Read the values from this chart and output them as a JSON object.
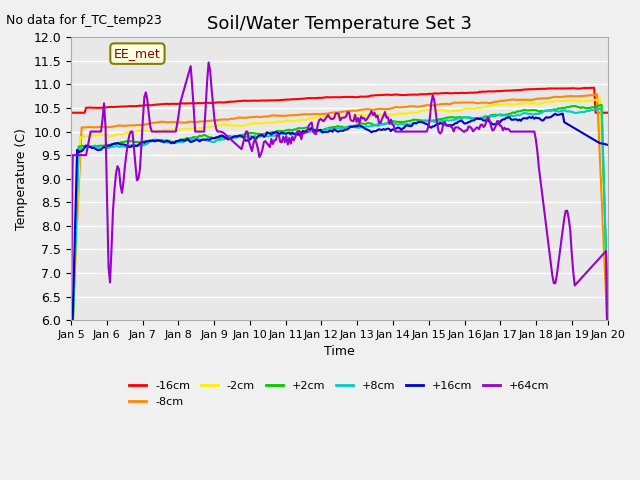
{
  "title": "Soil/Water Temperature Set 3",
  "subtitle": "No data for f_TC_temp23",
  "xlabel": "Time",
  "ylabel": "Temperature (C)",
  "ylim": [
    6.0,
    12.0
  ],
  "yticks": [
    6.0,
    6.5,
    7.0,
    7.5,
    8.0,
    8.5,
    9.0,
    9.5,
    10.0,
    10.5,
    11.0,
    11.5,
    12.0
  ],
  "bg_color": "#e8e8e8",
  "legend_label": "EE_met",
  "series_colors": {
    "-16cm": "#ff0000",
    "-8cm": "#ff8800",
    "-2cm": "#ffee00",
    "+2cm": "#00cc00",
    "+8cm": "#00cccc",
    "+16cm": "#0000cc",
    "+64cm": "#9900cc"
  },
  "n_points": 360
}
